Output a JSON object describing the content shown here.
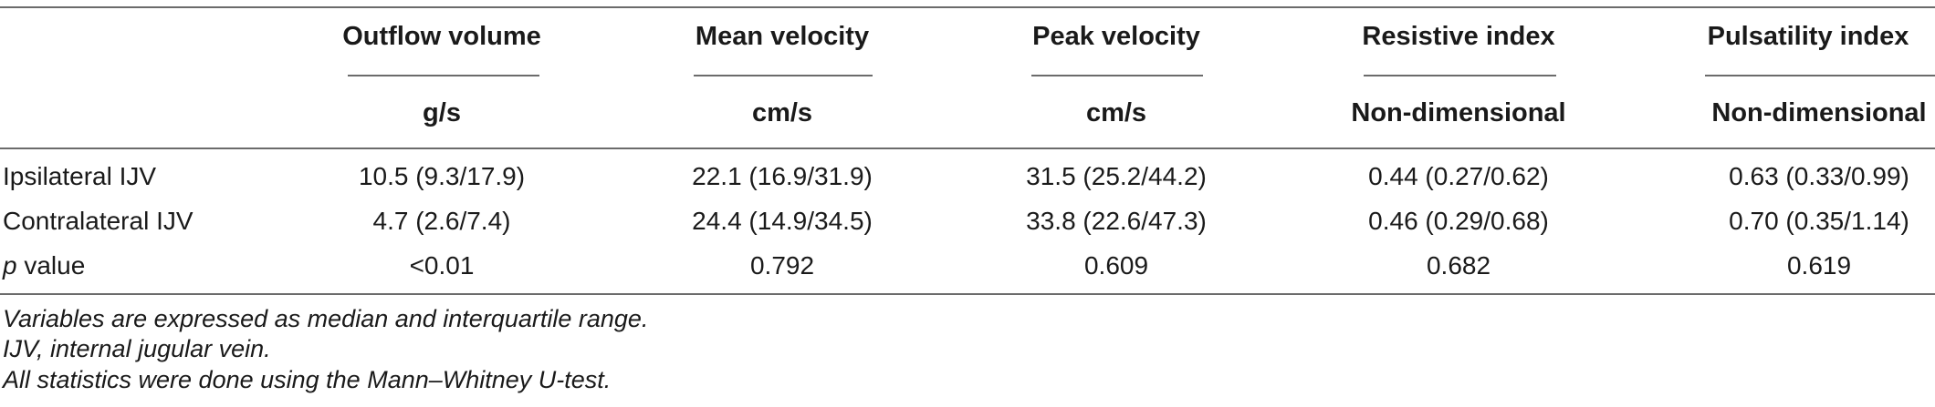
{
  "table": {
    "columns": [
      {
        "header": "Outflow volume",
        "unit": "g/s"
      },
      {
        "header": "Mean velocity",
        "unit": "cm/s"
      },
      {
        "header": "Peak velocity",
        "unit": "cm/s"
      },
      {
        "header": "Resistive index",
        "unit": "Non-dimensional"
      },
      {
        "header": "Pulsatility index",
        "unit": "Non-dimensional"
      }
    ],
    "rows": [
      {
        "label": "Ipsilateral IJV",
        "cells": [
          "10.5 (9.3/17.9)",
          "22.1 (16.9/31.9)",
          "31.5 (25.2/44.2)",
          "0.44 (0.27/0.62)",
          "0.63 (0.33/0.99)"
        ]
      },
      {
        "label": "Contralateral IJV",
        "cells": [
          "4.7 (2.6/7.4)",
          "24.4 (14.9/34.5)",
          "33.8 (22.6/47.3)",
          "0.46 (0.29/0.68)",
          "0.70 (0.35/1.14)"
        ]
      },
      {
        "label_italic": "p",
        "label": " value",
        "cells": [
          "<0.01",
          "0.792",
          "0.609",
          "0.682",
          "0.619"
        ]
      }
    ]
  },
  "notes": [
    "Variables are expressed as median and interquartile range.",
    "IJV, internal jugular vein.",
    "All statistics were done using the Mann–Whitney U-test."
  ]
}
